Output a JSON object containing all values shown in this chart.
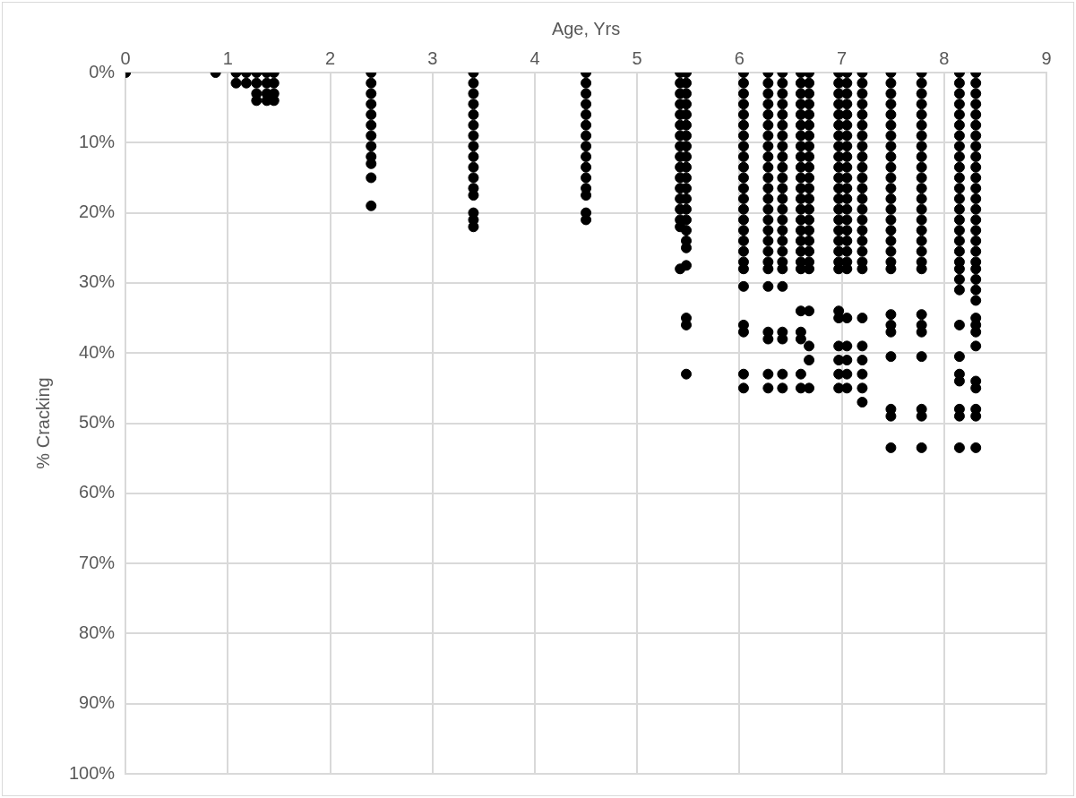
{
  "chart_data": {
    "type": "scatter",
    "xlabel": "Age, Yrs",
    "ylabel": "% Cracking",
    "xlim": [
      0,
      9
    ],
    "xticks": [
      0,
      1,
      2,
      3,
      4,
      5,
      6,
      7,
      8,
      9
    ],
    "ylim": [
      100,
      0
    ],
    "yticks": [
      {
        "value": 0,
        "label": "0%"
      },
      {
        "value": 10,
        "label": "10%"
      },
      {
        "value": 20,
        "label": "20%"
      },
      {
        "value": 30,
        "label": "30%"
      },
      {
        "value": 40,
        "label": "40%"
      },
      {
        "value": 50,
        "label": "50%"
      },
      {
        "value": 60,
        "label": "60%"
      },
      {
        "value": 70,
        "label": "70%"
      },
      {
        "value": 80,
        "label": "80%"
      },
      {
        "value": 90,
        "label": "90%"
      },
      {
        "value": 100,
        "label": "100%"
      }
    ],
    "grid": true,
    "legend": false,
    "marker": "circle",
    "series": [
      {
        "color": "#000000",
        "x": [
          0,
          0.88,
          1.08,
          1.08,
          1.18,
          1.18,
          1.28,
          1.28,
          1.28,
          1.28,
          1.38,
          1.38,
          1.38,
          1.38,
          1.45,
          1.45,
          1.45,
          1.45
        ],
        "values": [
          0,
          0,
          0,
          1.5,
          0,
          1.5,
          0,
          1.5,
          3,
          4,
          0,
          1.5,
          3,
          4,
          0,
          1.5,
          3,
          4
        ]
      },
      {
        "color": "#000000",
        "x": [
          2.4,
          2.4,
          2.4,
          2.4,
          2.4,
          2.4,
          2.4,
          2.4,
          2.4,
          2.4,
          2.4,
          2.4
        ],
        "values": [
          0,
          1.5,
          3,
          4.5,
          6,
          7.5,
          9,
          10.5,
          12,
          13,
          15,
          19
        ]
      },
      {
        "color": "#000000",
        "x": [
          3.4,
          3.4,
          3.4,
          3.4,
          3.4,
          3.4,
          3.4,
          3.4,
          3.4,
          3.4,
          3.4,
          3.4,
          3.4,
          3.4,
          3.4,
          3.4
        ],
        "values": [
          0,
          1.5,
          3,
          4.5,
          6,
          7.5,
          9,
          10.5,
          12,
          13.5,
          15,
          16.5,
          17.5,
          20,
          21,
          22
        ]
      },
      {
        "color": "#000000",
        "x": [
          4.5,
          4.5,
          4.5,
          4.5,
          4.5,
          4.5,
          4.5,
          4.5,
          4.5,
          4.5,
          4.5,
          4.5,
          4.5,
          4.5,
          4.5
        ],
        "values": [
          0,
          1.5,
          3,
          4.5,
          6,
          7.5,
          9,
          10.5,
          12,
          13.5,
          15,
          16.5,
          17.5,
          20,
          21
        ]
      },
      {
        "color": "#000000",
        "x": [
          5.42,
          5.42,
          5.42,
          5.42,
          5.42,
          5.42,
          5.42,
          5.42,
          5.42,
          5.42,
          5.42,
          5.42,
          5.42,
          5.42,
          5.42,
          5.42,
          5.42
        ],
        "values": [
          0,
          1.5,
          3,
          4.5,
          6,
          7.5,
          9,
          10.5,
          12,
          13.5,
          15,
          16.5,
          18,
          19.5,
          21,
          22,
          28
        ]
      },
      {
        "color": "#000000",
        "x": [
          5.48,
          5.48,
          5.48,
          5.48,
          5.48,
          5.48,
          5.48,
          5.48,
          5.48,
          5.48,
          5.48,
          5.48,
          5.48,
          5.48,
          5.48,
          5.48,
          5.48,
          5.48,
          5.48,
          5.48,
          5.48,
          5.48
        ],
        "values": [
          0,
          1.5,
          3,
          4.5,
          6,
          7.5,
          9,
          10.5,
          12,
          13.5,
          15,
          16.5,
          18,
          19.5,
          21,
          22.5,
          24,
          25,
          27.5,
          35,
          36,
          43
        ]
      },
      {
        "color": "#000000",
        "x": [
          6.04,
          6.04,
          6.04,
          6.04,
          6.04,
          6.04,
          6.04,
          6.04,
          6.04,
          6.04,
          6.04,
          6.04,
          6.04,
          6.04,
          6.04,
          6.04,
          6.04,
          6.04,
          6.04,
          6.04,
          6.04,
          6.04,
          6.04,
          6.04,
          6.04
        ],
        "values": [
          0,
          1.5,
          3,
          4.5,
          6,
          7.5,
          9,
          10.5,
          12,
          13.5,
          15,
          16.5,
          18,
          19.5,
          21,
          22.5,
          24,
          25.5,
          27,
          28,
          30.5,
          36,
          37,
          43,
          45
        ]
      },
      {
        "color": "#000000",
        "x": [
          6.28,
          6.28,
          6.28,
          6.28,
          6.28,
          6.28,
          6.28,
          6.28,
          6.28,
          6.28,
          6.28,
          6.28,
          6.28,
          6.28,
          6.28,
          6.28,
          6.28,
          6.28,
          6.28,
          6.28,
          6.28,
          6.28,
          6.28,
          6.28,
          6.28
        ],
        "values": [
          0,
          1.5,
          3,
          4.5,
          6,
          7.5,
          9,
          10.5,
          12,
          13.5,
          15,
          16.5,
          18,
          19.5,
          21,
          22.5,
          24,
          25.5,
          27,
          28,
          30.5,
          37,
          38,
          43,
          45
        ]
      },
      {
        "color": "#000000",
        "x": [
          6.42,
          6.42,
          6.42,
          6.42,
          6.42,
          6.42,
          6.42,
          6.42,
          6.42,
          6.42,
          6.42,
          6.42,
          6.42,
          6.42,
          6.42,
          6.42,
          6.42,
          6.42,
          6.42,
          6.42,
          6.42,
          6.42,
          6.42,
          6.42,
          6.42
        ],
        "values": [
          0,
          1.5,
          3,
          4.5,
          6,
          7.5,
          9,
          10.5,
          12,
          13.5,
          15,
          16.5,
          18,
          19.5,
          21,
          22.5,
          24,
          25.5,
          27,
          28,
          30.5,
          37,
          38,
          43,
          45
        ]
      },
      {
        "color": "#000000",
        "x": [
          6.6,
          6.6,
          6.6,
          6.6,
          6.6,
          6.6,
          6.6,
          6.6,
          6.6,
          6.6,
          6.6,
          6.6,
          6.6,
          6.6,
          6.6,
          6.6,
          6.6,
          6.6,
          6.6,
          6.6,
          6.6,
          6.6,
          6.6,
          6.6,
          6.6
        ],
        "values": [
          0,
          1.5,
          3,
          4.5,
          6,
          7.5,
          9,
          10.5,
          12,
          13.5,
          15,
          16.5,
          18,
          19.5,
          21,
          22.5,
          24,
          25.5,
          27,
          28,
          34,
          37,
          38,
          43,
          45
        ]
      },
      {
        "color": "#000000",
        "x": [
          6.68,
          6.68,
          6.68,
          6.68,
          6.68,
          6.68,
          6.68,
          6.68,
          6.68,
          6.68,
          6.68,
          6.68,
          6.68,
          6.68,
          6.68,
          6.68,
          6.68,
          6.68,
          6.68,
          6.68,
          6.68,
          6.68,
          6.68,
          6.68
        ],
        "values": [
          0,
          1.5,
          3,
          4.5,
          6,
          7.5,
          9,
          10.5,
          12,
          13.5,
          15,
          16.5,
          18,
          19.5,
          21,
          22.5,
          24,
          25.5,
          27,
          28,
          34,
          39,
          41,
          45
        ]
      },
      {
        "color": "#000000",
        "x": [
          6.97,
          6.97,
          6.97,
          6.97,
          6.97,
          6.97,
          6.97,
          6.97,
          6.97,
          6.97,
          6.97,
          6.97,
          6.97,
          6.97,
          6.97,
          6.97,
          6.97,
          6.97,
          6.97,
          6.97,
          6.97,
          6.97,
          6.97,
          6.97,
          6.97,
          6.97
        ],
        "values": [
          0,
          1.5,
          3,
          4.5,
          6,
          7.5,
          9,
          10.5,
          12,
          13.5,
          15,
          16.5,
          18,
          19.5,
          21,
          22.5,
          24,
          25.5,
          27,
          28,
          34,
          35,
          39,
          41,
          43,
          45
        ]
      },
      {
        "color": "#000000",
        "x": [
          7.05,
          7.05,
          7.05,
          7.05,
          7.05,
          7.05,
          7.05,
          7.05,
          7.05,
          7.05,
          7.05,
          7.05,
          7.05,
          7.05,
          7.05,
          7.05,
          7.05,
          7.05,
          7.05,
          7.05,
          7.05,
          7.05,
          7.05,
          7.05,
          7.05
        ],
        "values": [
          0,
          1.5,
          3,
          4.5,
          6,
          7.5,
          9,
          10.5,
          12,
          13.5,
          15,
          16.5,
          18,
          19.5,
          21,
          22.5,
          24,
          25.5,
          27,
          28,
          35,
          39,
          41,
          43,
          45
        ]
      },
      {
        "color": "#000000",
        "x": [
          7.2,
          7.2,
          7.2,
          7.2,
          7.2,
          7.2,
          7.2,
          7.2,
          7.2,
          7.2,
          7.2,
          7.2,
          7.2,
          7.2,
          7.2,
          7.2,
          7.2,
          7.2,
          7.2,
          7.2,
          7.2,
          7.2,
          7.2,
          7.2,
          7.2,
          7.2
        ],
        "values": [
          0,
          1.5,
          3,
          4.5,
          6,
          7.5,
          9,
          10.5,
          12,
          13.5,
          15,
          16.5,
          18,
          19.5,
          21,
          22.5,
          24,
          25.5,
          27,
          28,
          35,
          39,
          41,
          43,
          45,
          47
        ]
      },
      {
        "color": "#000000",
        "x": [
          7.48,
          7.48,
          7.48,
          7.48,
          7.48,
          7.48,
          7.48,
          7.48,
          7.48,
          7.48,
          7.48,
          7.48,
          7.48,
          7.48,
          7.48,
          7.48,
          7.48,
          7.48,
          7.48,
          7.48,
          7.48,
          7.48,
          7.48,
          7.48,
          7.48,
          7.48,
          7.48
        ],
        "values": [
          0,
          1.5,
          3,
          4.5,
          6,
          7.5,
          9,
          10.5,
          12,
          13.5,
          15,
          16.5,
          18,
          19.5,
          21,
          22.5,
          24,
          25.5,
          27,
          28,
          34.5,
          36,
          37,
          40.5,
          48,
          49,
          53.5
        ]
      },
      {
        "color": "#000000",
        "x": [
          7.78,
          7.78,
          7.78,
          7.78,
          7.78,
          7.78,
          7.78,
          7.78,
          7.78,
          7.78,
          7.78,
          7.78,
          7.78,
          7.78,
          7.78,
          7.78,
          7.78,
          7.78,
          7.78,
          7.78,
          7.78,
          7.78,
          7.78,
          7.78,
          7.78,
          7.78,
          7.78
        ],
        "values": [
          0,
          1.5,
          3,
          4.5,
          6,
          7.5,
          9,
          10.5,
          12,
          13.5,
          15,
          16.5,
          18,
          19.5,
          21,
          22.5,
          24,
          25.5,
          27,
          28,
          34.5,
          36,
          37,
          40.5,
          48,
          49,
          53.5
        ]
      },
      {
        "color": "#000000",
        "x": [
          8.15,
          8.15,
          8.15,
          8.15,
          8.15,
          8.15,
          8.15,
          8.15,
          8.15,
          8.15,
          8.15,
          8.15,
          8.15,
          8.15,
          8.15,
          8.15,
          8.15,
          8.15,
          8.15,
          8.15,
          8.15,
          8.15,
          8.15,
          8.15,
          8.15,
          8.15,
          8.15,
          8.15,
          8.15
        ],
        "values": [
          0,
          1.5,
          3,
          4.5,
          6,
          7.5,
          9,
          10.5,
          12,
          13.5,
          15,
          16.5,
          18,
          19.5,
          21,
          22.5,
          24,
          25.5,
          27,
          28,
          29.5,
          31,
          36,
          40.5,
          43,
          44,
          48,
          49,
          53.5
        ]
      },
      {
        "color": "#000000",
        "x": [
          8.31,
          8.31,
          8.31,
          8.31,
          8.31,
          8.31,
          8.31,
          8.31,
          8.31,
          8.31,
          8.31,
          8.31,
          8.31,
          8.31,
          8.31,
          8.31,
          8.31,
          8.31,
          8.31,
          8.31,
          8.31,
          8.31,
          8.31,
          8.31,
          8.31,
          8.31,
          8.31,
          8.31,
          8.31,
          8.31,
          8.31,
          8.31
        ],
        "values": [
          0,
          1.5,
          3,
          4.5,
          6,
          7.5,
          9,
          10.5,
          12,
          13.5,
          15,
          16.5,
          18,
          19.5,
          21,
          22.5,
          24,
          25.5,
          27,
          28,
          29.5,
          31,
          32.5,
          35,
          36,
          37,
          39,
          44,
          45,
          48,
          49,
          53.5
        ]
      }
    ]
  }
}
